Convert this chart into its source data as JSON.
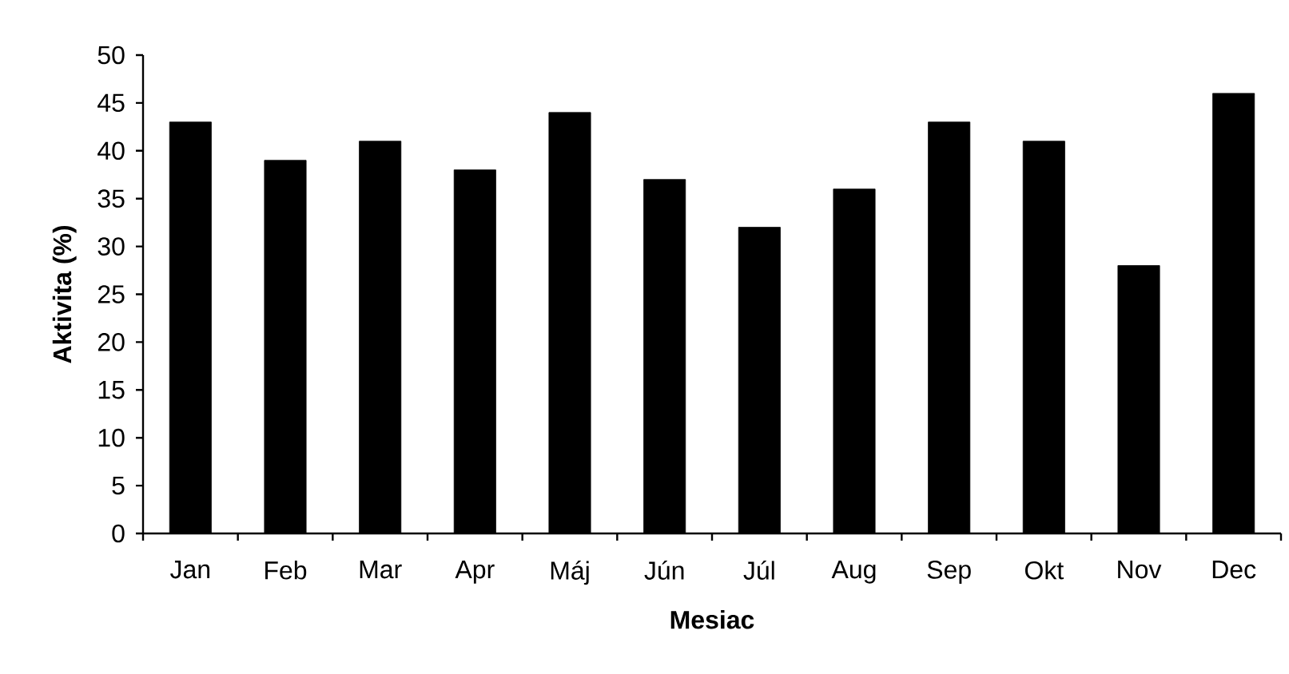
{
  "chart_data": {
    "type": "bar",
    "xlabel": "Mesiac",
    "ylabel": "Aktivita (%)",
    "categories": [
      "Jan",
      "Feb",
      "Mar",
      "Apr",
      "Máj",
      "Jún",
      "Júl",
      "Aug",
      "Sep",
      "Okt",
      "Nov",
      "Dec"
    ],
    "values": [
      43,
      39,
      41,
      38,
      44,
      37,
      32,
      36,
      43,
      41,
      28,
      46
    ],
    "color": "#000000",
    "ylim": [
      0,
      50
    ],
    "yticks": [
      0,
      5,
      10,
      15,
      20,
      25,
      30,
      35,
      40,
      45,
      50
    ]
  }
}
